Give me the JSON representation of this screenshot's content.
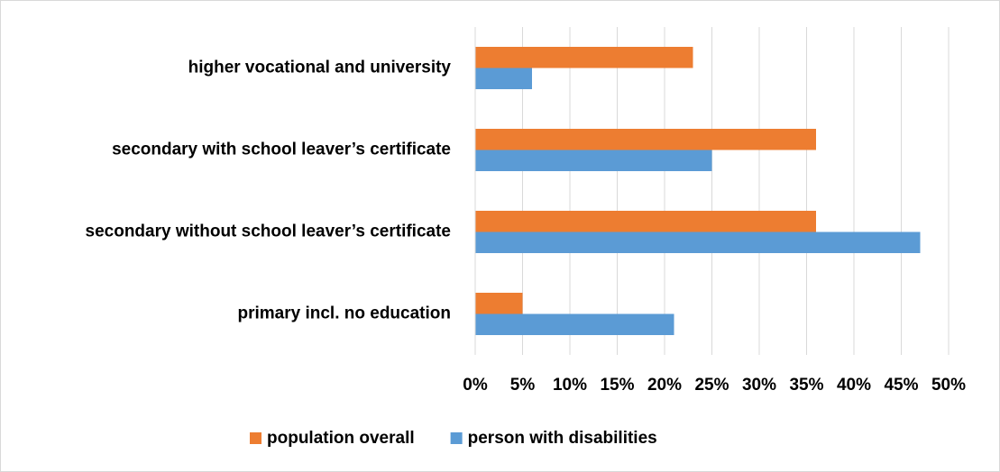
{
  "chart_data": {
    "type": "bar",
    "orientation": "horizontal",
    "categories": [
      "higher vocational and university",
      "secondary with school leaver’s certificate",
      "secondary without school leaver’s certificate",
      "primary incl. no education"
    ],
    "series": [
      {
        "name": "population overall",
        "color": "#ED7D31",
        "values": [
          23,
          36,
          36,
          5
        ]
      },
      {
        "name": "person with disabilities",
        "color": "#5B9BD5",
        "values": [
          6,
          25,
          47,
          21
        ]
      }
    ],
    "xlim": [
      0,
      50
    ],
    "xticks": [
      {
        "value": 0,
        "label": "0%"
      },
      {
        "value": 5,
        "label": "5%"
      },
      {
        "value": 10,
        "label": "10%"
      },
      {
        "value": 15,
        "label": "15%"
      },
      {
        "value": 20,
        "label": "20%"
      },
      {
        "value": 25,
        "label": "25%"
      },
      {
        "value": 30,
        "label": "30%"
      },
      {
        "value": 35,
        "label": "35%"
      },
      {
        "value": 40,
        "label": "40%"
      },
      {
        "value": 45,
        "label": "45%"
      },
      {
        "value": 50,
        "label": "50%"
      }
    ],
    "grid": true,
    "legend": "bottom"
  }
}
